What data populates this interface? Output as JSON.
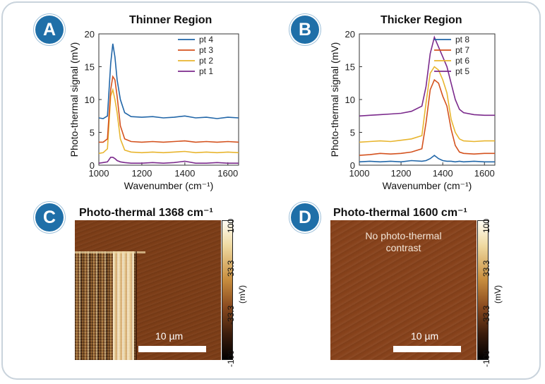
{
  "badges": {
    "a": "A",
    "b": "B",
    "c": "C",
    "d": "D"
  },
  "chart_data": [
    {
      "type": "line",
      "title": "Thinner Region",
      "xlabel": "Wavenumber (cm⁻¹)",
      "ylabel": "Photo-thermal signal (mV)",
      "xlim": [
        1000,
        1650
      ],
      "ylim": [
        0,
        20
      ],
      "xticks": [
        1000,
        1200,
        1400,
        1600
      ],
      "yticks": [
        0,
        5,
        10,
        15,
        20
      ],
      "legend": "top-right",
      "colors": [
        "#2166a8",
        "#d4521e",
        "#e8b52e",
        "#7b2a8c"
      ],
      "x": [
        1000,
        1020,
        1040,
        1055,
        1065,
        1075,
        1085,
        1100,
        1120,
        1150,
        1200,
        1250,
        1300,
        1350,
        1400,
        1450,
        1500,
        1550,
        1600,
        1650
      ],
      "series": [
        {
          "name": "pt 4",
          "values": [
            7.2,
            7.1,
            7.5,
            15.5,
            18.5,
            16.5,
            13.0,
            10.0,
            8.0,
            7.4,
            7.3,
            7.4,
            7.2,
            7.3,
            7.5,
            7.2,
            7.3,
            7.1,
            7.3,
            7.2
          ]
        },
        {
          "name": "pt 3",
          "values": [
            3.5,
            3.5,
            4.0,
            11.5,
            13.5,
            13.0,
            10.5,
            6.0,
            4.0,
            3.6,
            3.5,
            3.6,
            3.5,
            3.6,
            3.7,
            3.5,
            3.6,
            3.5,
            3.6,
            3.5
          ]
        },
        {
          "name": "pt 2",
          "values": [
            1.8,
            1.9,
            2.5,
            10.5,
            11.5,
            10.0,
            8.0,
            4.0,
            2.3,
            2.0,
            1.9,
            2.0,
            1.9,
            2.0,
            2.1,
            1.9,
            2.0,
            1.9,
            2.0,
            1.9
          ]
        },
        {
          "name": "pt 1",
          "values": [
            0.3,
            0.4,
            0.5,
            1.2,
            1.2,
            1.0,
            0.7,
            0.5,
            0.4,
            0.3,
            0.3,
            0.4,
            0.3,
            0.4,
            0.6,
            0.3,
            0.3,
            0.4,
            0.3,
            0.3
          ]
        }
      ]
    },
    {
      "type": "line",
      "title": "Thicker Region",
      "xlabel": "Wavenumber (cm⁻¹)",
      "ylabel": "Photo-thermal signal (mV)",
      "xlim": [
        1000,
        1650
      ],
      "ylim": [
        0,
        20
      ],
      "xticks": [
        1000,
        1200,
        1400,
        1600
      ],
      "yticks": [
        0,
        5,
        10,
        15,
        20
      ],
      "legend": "top-right",
      "colors": [
        "#2166a8",
        "#d4521e",
        "#e8b52e",
        "#7b2a8c"
      ],
      "x": [
        1000,
        1050,
        1100,
        1150,
        1200,
        1250,
        1300,
        1320,
        1340,
        1360,
        1380,
        1400,
        1420,
        1440,
        1460,
        1480,
        1500,
        1550,
        1600,
        1650
      ],
      "series": [
        {
          "name": "pt 8",
          "values": [
            0.5,
            0.6,
            0.5,
            0.6,
            0.5,
            0.7,
            0.6,
            0.7,
            1.0,
            1.5,
            1.0,
            0.7,
            0.6,
            0.6,
            0.5,
            0.6,
            0.5,
            0.6,
            0.5,
            0.5
          ]
        },
        {
          "name": "pt 7",
          "values": [
            1.5,
            1.6,
            1.8,
            1.7,
            1.8,
            2.0,
            2.5,
            6.5,
            11.5,
            13.0,
            12.5,
            10.5,
            9.0,
            5.5,
            3.0,
            2.0,
            1.8,
            1.7,
            1.8,
            1.8
          ]
        },
        {
          "name": "pt 6",
          "values": [
            3.5,
            3.6,
            3.7,
            3.6,
            3.8,
            4.0,
            4.5,
            9.5,
            14.0,
            15.0,
            14.5,
            13.0,
            11.0,
            7.0,
            5.0,
            4.0,
            3.7,
            3.6,
            3.7,
            3.7
          ]
        },
        {
          "name": "pt 5",
          "values": [
            7.5,
            7.6,
            7.7,
            7.8,
            7.9,
            8.2,
            9.0,
            12.0,
            17.0,
            19.5,
            18.0,
            16.5,
            15.0,
            12.5,
            10.0,
            8.5,
            8.0,
            7.7,
            7.6,
            7.6
          ]
        }
      ]
    }
  ],
  "panelC": {
    "title": "Photo-thermal 1368 cm⁻¹",
    "scale_label": "10 µm",
    "colorbar": {
      "label": "(mV)",
      "ticks": [
        "100",
        "33.3",
        "-33.3",
        "-100"
      ]
    }
  },
  "panelD": {
    "title": "Photo-thermal 1600 cm⁻¹",
    "overlay_line1": "No photo-thermal",
    "overlay_line2": "contrast",
    "scale_label": "10 µm",
    "colorbar": {
      "label": "(mV)",
      "ticks": [
        "100",
        "33.3",
        "-33.3",
        "-100"
      ]
    }
  }
}
